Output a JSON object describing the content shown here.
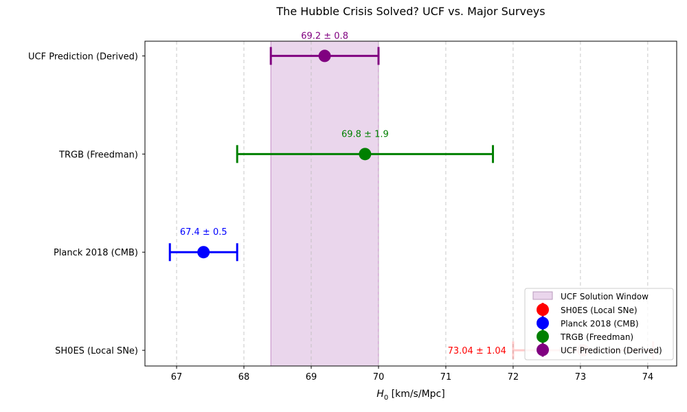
{
  "chart_data": {
    "type": "errorbar",
    "title": "The Hubble Crisis Solved? UCF vs. Major Surveys",
    "xlabel": "H0 [km/s/Mpc]",
    "xlabel_main": "H",
    "xlabel_sub": "0",
    "xlabel_unit": " [km/s/Mpc]",
    "xlim": [
      66.53,
      74.43
    ],
    "xticks": [
      67,
      68,
      69,
      70,
      71,
      72,
      73,
      74
    ],
    "grid": "x dashed",
    "categories": [
      "SH0ES (Local SNe)",
      "Planck 2018 (CMB)",
      "TRGB (Freedman)",
      "UCF Prediction (Derived)"
    ],
    "series": [
      {
        "name": "SH0ES (Local SNe)",
        "value": 73.04,
        "error": 1.04,
        "label": "73.04 ± 1.04",
        "color": "#ff0000",
        "alpha": 0.2
      },
      {
        "name": "Planck 2018 (CMB)",
        "value": 67.4,
        "error": 0.5,
        "label": "67.4 ± 0.5",
        "color": "#0000ff",
        "alpha": 1
      },
      {
        "name": "TRGB (Freedman)",
        "value": 69.8,
        "error": 1.9,
        "label": "69.8 ± 1.9",
        "color": "#008000",
        "alpha": 1
      },
      {
        "name": "UCF Prediction (Derived)",
        "value": 69.2,
        "error": 0.8,
        "label": "69.2 ± 0.8",
        "color": "#800080",
        "alpha": 1
      }
    ],
    "band": {
      "name": "UCF Solution Window",
      "from": 68.4,
      "to": 70.0,
      "color": "#d8b4dc"
    },
    "legend_position": "lower-right"
  }
}
